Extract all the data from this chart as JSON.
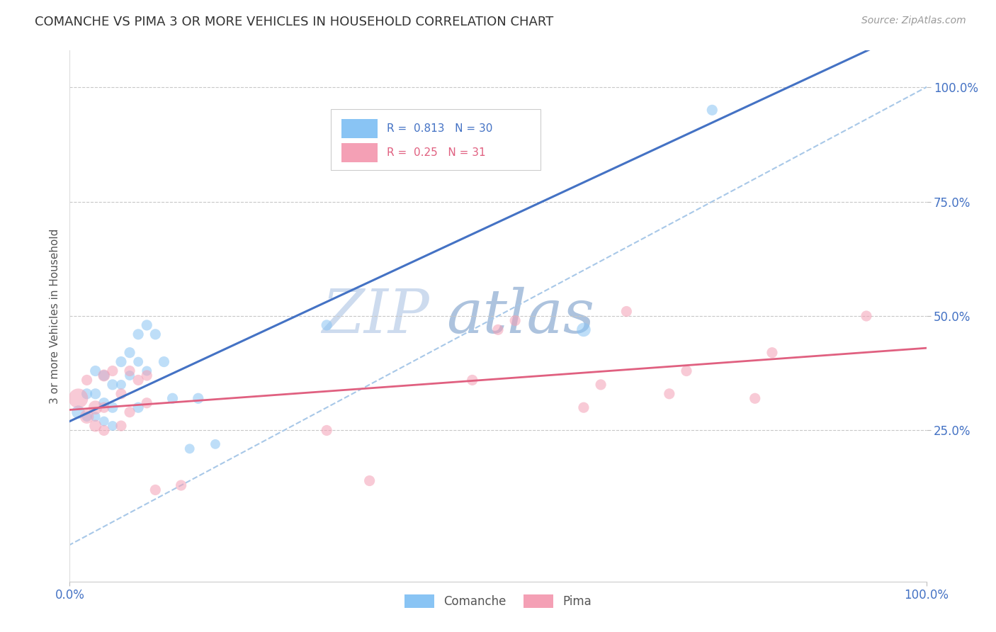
{
  "title": "COMANCHE VS PIMA 3 OR MORE VEHICLES IN HOUSEHOLD CORRELATION CHART",
  "source_text": "Source: ZipAtlas.com",
  "ylabel": "3 or more Vehicles in Household",
  "x_tick_labels": [
    "0.0%",
    "100.0%"
  ],
  "y_tick_labels": [
    "25.0%",
    "50.0%",
    "75.0%",
    "100.0%"
  ],
  "y_tick_positions": [
    0.25,
    0.5,
    0.75,
    1.0
  ],
  "xlim": [
    0.0,
    1.0
  ],
  "ylim": [
    -0.08,
    1.08
  ],
  "comanche_R": 0.813,
  "comanche_N": 30,
  "pima_R": 0.25,
  "pima_N": 31,
  "comanche_color": "#89C4F4",
  "pima_color": "#F4A0B5",
  "comanche_line_color": "#4472C4",
  "pima_line_color": "#E06080",
  "ref_line_color": "#A8C8E8",
  "title_color": "#333333",
  "axis_label_color": "#4472C4",
  "grid_color": "#C8C8C8",
  "watermark_color": "#C8D8F0",
  "comanche_x": [
    0.01,
    0.02,
    0.02,
    0.03,
    0.03,
    0.03,
    0.04,
    0.04,
    0.04,
    0.05,
    0.05,
    0.05,
    0.06,
    0.06,
    0.07,
    0.07,
    0.08,
    0.08,
    0.08,
    0.09,
    0.09,
    0.1,
    0.11,
    0.12,
    0.14,
    0.15,
    0.17,
    0.3,
    0.6,
    0.75
  ],
  "comanche_y": [
    0.29,
    0.33,
    0.28,
    0.38,
    0.33,
    0.28,
    0.37,
    0.31,
    0.27,
    0.35,
    0.3,
    0.26,
    0.4,
    0.35,
    0.42,
    0.37,
    0.46,
    0.4,
    0.3,
    0.48,
    0.38,
    0.46,
    0.4,
    0.32,
    0.21,
    0.32,
    0.22,
    0.48,
    0.47,
    0.95
  ],
  "comanche_sizes": [
    180,
    120,
    100,
    120,
    120,
    100,
    120,
    120,
    100,
    120,
    120,
    100,
    120,
    100,
    120,
    100,
    120,
    100,
    120,
    120,
    100,
    120,
    120,
    120,
    100,
    120,
    100,
    120,
    200,
    120
  ],
  "pima_x": [
    0.01,
    0.02,
    0.02,
    0.03,
    0.03,
    0.04,
    0.04,
    0.04,
    0.05,
    0.06,
    0.06,
    0.07,
    0.07,
    0.08,
    0.09,
    0.09,
    0.1,
    0.13,
    0.3,
    0.35,
    0.47,
    0.5,
    0.52,
    0.6,
    0.62,
    0.65,
    0.7,
    0.72,
    0.8,
    0.82,
    0.93
  ],
  "pima_y": [
    0.32,
    0.28,
    0.36,
    0.3,
    0.26,
    0.37,
    0.3,
    0.25,
    0.38,
    0.33,
    0.26,
    0.38,
    0.29,
    0.36,
    0.31,
    0.37,
    0.12,
    0.13,
    0.25,
    0.14,
    0.36,
    0.47,
    0.49,
    0.3,
    0.35,
    0.51,
    0.33,
    0.38,
    0.32,
    0.42,
    0.5
  ],
  "pima_sizes": [
    400,
    200,
    120,
    200,
    150,
    150,
    120,
    120,
    120,
    120,
    120,
    120,
    120,
    120,
    120,
    120,
    120,
    120,
    120,
    120,
    120,
    120,
    120,
    120,
    120,
    120,
    120,
    120,
    120,
    120,
    120
  ],
  "comanche_intercept": 0.27,
  "comanche_slope": 0.87,
  "pima_intercept": 0.295,
  "pima_slope": 0.135
}
